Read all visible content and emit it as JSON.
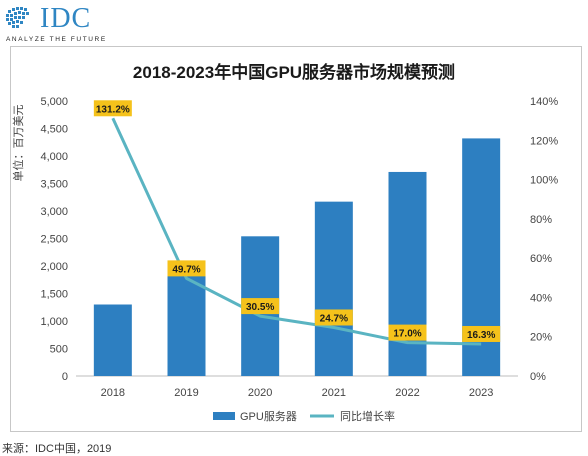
{
  "logo": {
    "name": "IDC",
    "tagline": "ANALYZE THE FUTURE",
    "color": "#2f86c3"
  },
  "source": "来源：IDC中国，2019",
  "chart_data": {
    "type": "bar",
    "title": "2018-2023年中国GPU服务器市场规模预测",
    "ylabel": "单位：百万美元",
    "categories": [
      "2018",
      "2019",
      "2020",
      "2021",
      "2022",
      "2023"
    ],
    "ylim": [
      0,
      5000
    ],
    "yticks": [
      0,
      500,
      1000,
      1500,
      2000,
      2500,
      3000,
      3500,
      4000,
      4500,
      5000
    ],
    "yticklabels": [
      "0",
      "500",
      "1,000",
      "1,500",
      "2,000",
      "2,500",
      "3,000",
      "3,500",
      "4,000",
      "4,500",
      "5,000"
    ],
    "y2lim": [
      0,
      140
    ],
    "y2ticks": [
      0,
      20,
      40,
      60,
      80,
      100,
      120,
      140
    ],
    "y2ticklabels": [
      "0%",
      "20%",
      "40%",
      "60%",
      "80%",
      "100%",
      "120%",
      "140%"
    ],
    "series": [
      {
        "name": "GPU服务器",
        "type": "bar",
        "axis": "left",
        "color": "#2d7fc1",
        "values": [
          1300,
          1940,
          2540,
          3170,
          3710,
          4320
        ]
      },
      {
        "name": "同比增长率",
        "type": "line",
        "axis": "right",
        "color": "#5ab4c2",
        "values": [
          131.2,
          49.7,
          30.5,
          24.7,
          17.0,
          16.3
        ],
        "labels": [
          "131.2%",
          "49.7%",
          "30.5%",
          "24.7%",
          "17.0%",
          "16.3%"
        ]
      }
    ],
    "label_color": "#f5c21b",
    "grid": false,
    "legend": "bottom"
  }
}
